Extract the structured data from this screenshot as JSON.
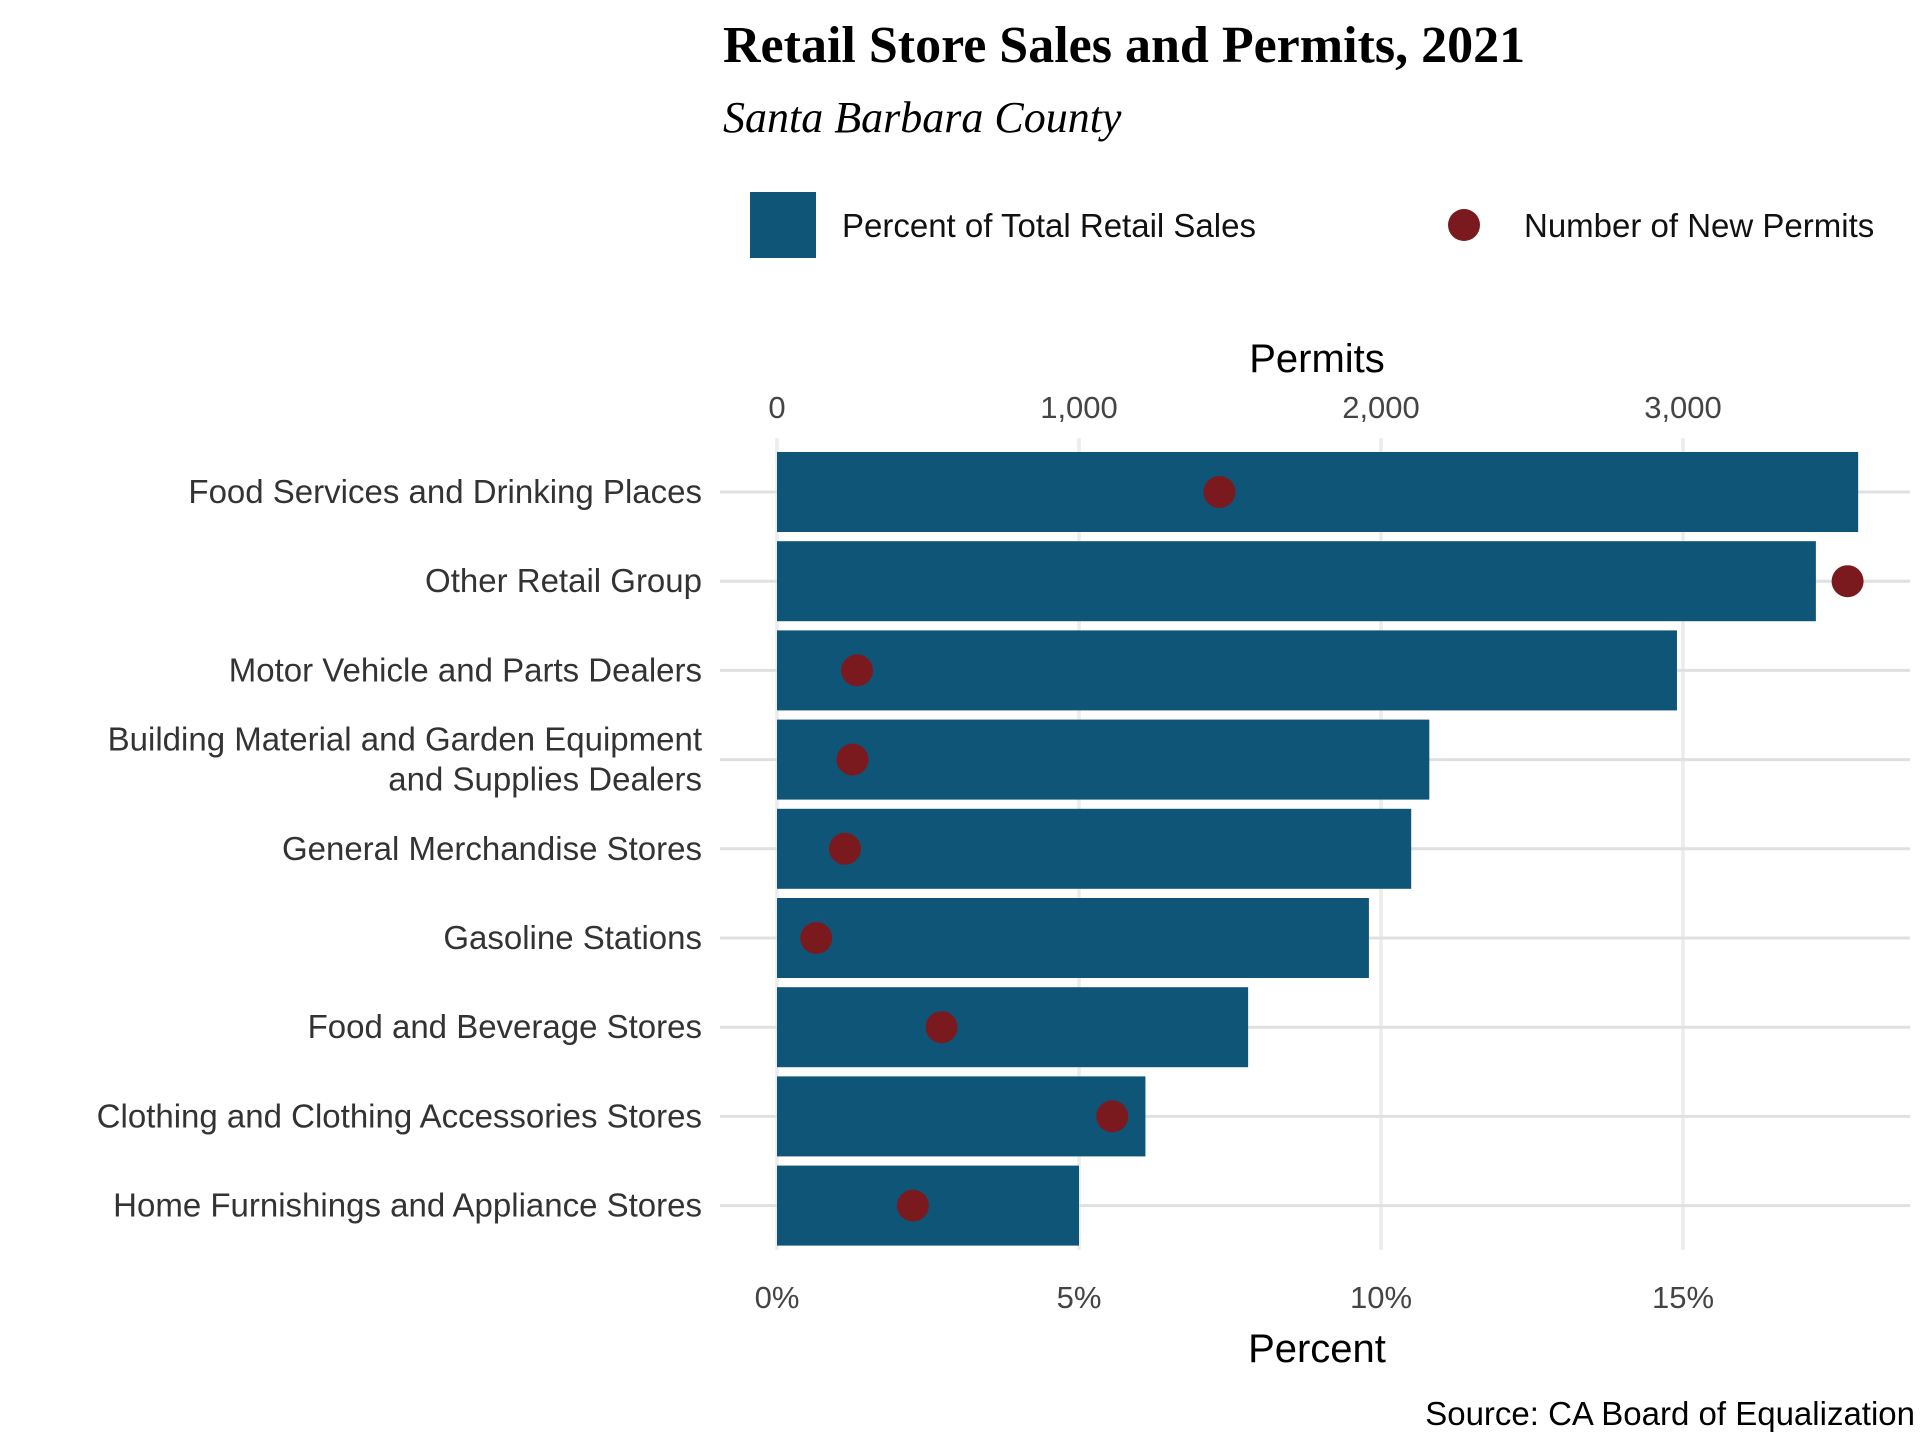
{
  "chart_data": {
    "type": "bar",
    "title": "Retail Store Sales and Permits, 2021",
    "subtitle": "Santa Barbara County",
    "caption": "Source: CA Board of Equalization",
    "xlabel_bottom": "Percent",
    "xlabel_top": "Permits",
    "orientation": "horizontal",
    "categories": [
      "Food Services and Drinking Places",
      "Other Retail Group",
      "Motor Vehicle and Parts Dealers",
      "Building Material and Garden Equipment\nand Supplies Dealers",
      "General Merchandise Stores",
      "Gasoline Stations",
      "Food and Beverage Stores",
      "Clothing and Clothing Accessories Stores",
      "Home Furnishings and Appliance Stores"
    ],
    "series": [
      {
        "name": "Percent of Total Retail Sales",
        "type": "bar",
        "axis": "bottom",
        "color": "#0e5578",
        "values": [
          17.9,
          17.2,
          14.9,
          10.8,
          10.5,
          9.8,
          7.8,
          6.1,
          5.0
        ]
      },
      {
        "name": "Number of New Permits",
        "type": "point",
        "axis": "top",
        "color": "#7b1a1e",
        "values": [
          1465,
          3545,
          265,
          250,
          225,
          130,
          545,
          1110,
          450
        ]
      }
    ],
    "xlim_bottom": [
      0,
      18.8
    ],
    "xticks_bottom": [
      0,
      5,
      10,
      15
    ],
    "xtick_labels_bottom": [
      "0%",
      "5%",
      "10%",
      "15%"
    ],
    "xlim_top": [
      0,
      3760
    ],
    "xticks_top": [
      0,
      1000,
      2000,
      3000
    ],
    "xtick_labels_top": [
      "0",
      "1,000",
      "2,000",
      "3,000"
    ],
    "grid": true,
    "legend_position": "top"
  }
}
